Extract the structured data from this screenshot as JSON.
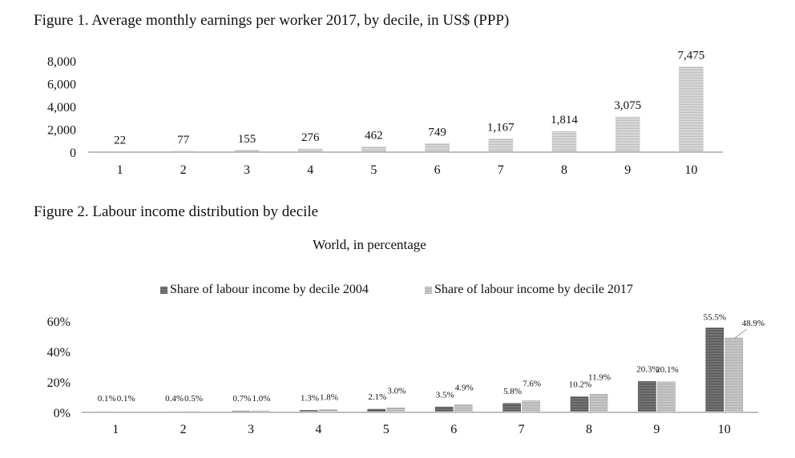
{
  "chart_data": [
    {
      "type": "bar",
      "title": "Figure 1. Average monthly earnings per worker 2017, by decile, in US$ (PPP)",
      "categories": [
        "1",
        "2",
        "3",
        "4",
        "5",
        "6",
        "7",
        "8",
        "9",
        "10"
      ],
      "values": [
        22,
        77,
        155,
        276,
        462,
        749,
        1167,
        1814,
        3075,
        7475
      ],
      "value_labels": [
        "22",
        "77",
        "155",
        "276",
        "462",
        "749",
        "1,167",
        "1,814",
        "3,075",
        "7,475"
      ],
      "yticks": [
        "8,000",
        "6,000",
        "4,000",
        "2,000",
        "0"
      ],
      "ytick_values": [
        8000,
        6000,
        4000,
        2000,
        0
      ],
      "ylim": [
        0,
        8000
      ],
      "xlabel": "",
      "ylabel": "",
      "colors": {
        "bar": "#bdbdbd",
        "bar_stripe": "#e6e6e6",
        "axis": "#bfbfbf"
      }
    },
    {
      "type": "bar",
      "title": "Figure 2. Labour income distribution by decile",
      "subtitle": "World, in percentage",
      "categories": [
        "1",
        "2",
        "3",
        "4",
        "5",
        "6",
        "7",
        "8",
        "9",
        "10"
      ],
      "series": [
        {
          "name": "Share of labour income by decile 2004",
          "values": [
            0.1,
            0.4,
            0.7,
            1.3,
            2.1,
            3.5,
            5.8,
            10.2,
            20.3,
            55.5
          ],
          "labels": [
            "0.1%",
            "0.4%",
            "0.7%",
            "1.3%",
            "2.1%",
            "3.5%",
            "5.8%",
            "10.2%",
            "20.3%",
            "55.5%"
          ],
          "color": "#555555",
          "stripe": "#8a8a8a"
        },
        {
          "name": "Share of labour income by decile 2017",
          "values": [
            0.1,
            0.5,
            1.0,
            1.8,
            3.0,
            4.9,
            7.6,
            11.9,
            20.1,
            48.9
          ],
          "labels": [
            "0.1%",
            "0.5%",
            "1.0%",
            "1.8%",
            "3.0%",
            "4.9%",
            "7.6%",
            "11.9%",
            "20.1%",
            "48.9%"
          ],
          "color": "#a8a8a8",
          "stripe": "#d8d8d8"
        }
      ],
      "yticks": [
        "60%",
        "40%",
        "20%",
        "0%"
      ],
      "ytick_values": [
        60,
        40,
        20,
        0
      ],
      "ylim": [
        0,
        60
      ],
      "legend_position": "top-center",
      "xlabel": "",
      "ylabel": ""
    }
  ]
}
